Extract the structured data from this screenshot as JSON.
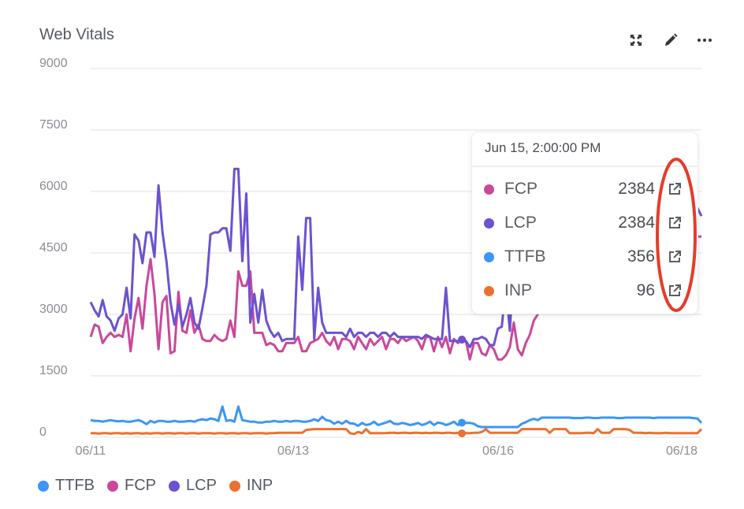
{
  "panel": {
    "title": "Web Vitals"
  },
  "header_icons": [
    "expand-icon",
    "edit-pencil-icon",
    "more-options-icon"
  ],
  "colors": {
    "TTFB": "#3b96f5",
    "FCP": "#c9489b",
    "LCP": "#6c52d0",
    "INP": "#ea7131",
    "annotation": "#e53c2a"
  },
  "legend": [
    {
      "label": "TTFB",
      "color": "#3b96f5"
    },
    {
      "label": "FCP",
      "color": "#c9489b"
    },
    {
      "label": "LCP",
      "color": "#6c52d0"
    },
    {
      "label": "INP",
      "color": "#ea7131"
    }
  ],
  "tooltip": {
    "title": "Jun 15, 2:00:00 PM",
    "rows": [
      {
        "label": "FCP",
        "value": "2384",
        "color": "#c9489b",
        "icon": "external-link-icon"
      },
      {
        "label": "LCP",
        "value": "2384",
        "color": "#6c52d0",
        "icon": "external-link-icon"
      },
      {
        "label": "TTFB",
        "value": "356",
        "color": "#3b96f5",
        "icon": "external-link-icon"
      },
      {
        "label": "INP",
        "value": "96",
        "color": "#ea7131",
        "icon": "external-link-icon"
      }
    ]
  },
  "chart_data": {
    "type": "line",
    "title": "Web Vitals",
    "ylim": [
      0,
      9000
    ],
    "y_ticks": [
      "0",
      "1500",
      "3000",
      "4500",
      "6000",
      "7500",
      "9000"
    ],
    "x_ticks": [
      "06/11",
      "06/13",
      "06/16",
      "06/18"
    ],
    "grid": true,
    "legend_position": "bottom-left",
    "series": [
      {
        "name": "FCP",
        "color": "#c9489b",
        "values": [
          2450,
          2750,
          2700,
          2300,
          2450,
          2550,
          2450,
          2500,
          2450,
          3000,
          2100,
          2900,
          3400,
          2650,
          3700,
          4350,
          3500,
          2150,
          3300,
          3450,
          2050,
          2100,
          3550,
          2600,
          2550,
          3100,
          2550,
          2750,
          2400,
          2350,
          2350,
          2500,
          2400,
          2350,
          2400,
          2850,
          2450,
          4050,
          3700,
          3700,
          4050,
          2550,
          2550,
          2550,
          2250,
          2300,
          2250,
          2100,
          2100,
          2300,
          2300,
          2300,
          2450,
          2100,
          2100,
          2300,
          2350,
          2400,
          2550,
          2350,
          2250,
          2450,
          2150,
          2400,
          2400,
          2350,
          2150,
          2450,
          2300,
          2150,
          2400,
          2250,
          2350,
          2450,
          2150,
          2400,
          2400,
          2300,
          2450,
          2350,
          2400,
          2450,
          2350,
          2150,
          2450,
          2450,
          2100,
          2450,
          2200,
          2450,
          2050,
          2400,
          2300,
          2384,
          2350,
          1900,
          2300,
          2300,
          2050,
          2000,
          2250,
          2150,
          1900,
          1900,
          2000,
          2200,
          2800,
          2150,
          2000,
          2300,
          2500,
          2850,
          3000,
          3100,
          3200,
          3300,
          3200,
          3100,
          3200,
          3300,
          3400,
          3300,
          3200,
          3100,
          3200,
          3300,
          3400,
          3500,
          3600,
          3700,
          3600,
          3500,
          3400,
          3300,
          3200,
          3100,
          3200,
          3300,
          3400,
          3500,
          3600,
          3700,
          3800,
          3900,
          4000,
          4200,
          4400,
          4600,
          4800,
          5000,
          5200,
          5000,
          4900,
          4900
        ]
      },
      {
        "name": "LCP",
        "color": "#6c52d0",
        "values": [
          3300,
          3100,
          2950,
          3350,
          2950,
          2850,
          2600,
          2900,
          3000,
          3650,
          2900,
          4950,
          4800,
          4250,
          5000,
          5000,
          4400,
          6150,
          5000,
          4300,
          3300,
          2750,
          3250,
          2700,
          3000,
          3400,
          2800,
          2650,
          3150,
          3700,
          4950,
          5000,
          5000,
          5100,
          5100,
          4550,
          6550,
          6550,
          4300,
          5950,
          2800,
          3500,
          2800,
          3600,
          2850,
          2600,
          2450,
          2550,
          2350,
          2400,
          2400,
          2400,
          4900,
          3600,
          5350,
          5350,
          2400,
          3650,
          2800,
          2550,
          2550,
          2550,
          2550,
          2550,
          2450,
          2650,
          2450,
          2550,
          2550,
          2450,
          2550,
          2550,
          2450,
          2550,
          2550,
          2450,
          2550,
          2450,
          2450,
          2450,
          2450,
          2450,
          2450,
          2400,
          2500,
          2450,
          2400,
          2400,
          2400,
          3650,
          2350,
          2350,
          2350,
          2384,
          2350,
          2200,
          2400,
          2400,
          2450,
          2400,
          2250,
          2250,
          2650,
          2700,
          3700,
          2600,
          4200,
          3900,
          3500,
          3300,
          3200,
          3100,
          3200,
          3300,
          3400,
          3500,
          3600,
          3500,
          3400,
          3300,
          3200,
          3300,
          3400,
          3500,
          3600,
          3700,
          3800,
          3900,
          4000,
          4100,
          4000,
          3900,
          3800,
          3700,
          3600,
          3500,
          3400,
          3300,
          3200,
          3100,
          3200,
          3300,
          3400,
          3500,
          3600,
          3700,
          3800,
          3900,
          4200,
          4600,
          5000,
          5400,
          5600,
          5400
        ]
      },
      {
        "name": "TTFB",
        "color": "#3b96f5",
        "values": [
          420,
          400,
          400,
          380,
          400,
          420,
          400,
          390,
          400,
          380,
          380,
          400,
          420,
          380,
          320,
          400,
          360,
          400,
          400,
          380,
          380,
          400,
          380,
          380,
          390,
          400,
          380,
          420,
          440,
          420,
          460,
          440,
          400,
          750,
          400,
          420,
          380,
          750,
          420,
          400,
          380,
          380,
          360,
          360,
          380,
          380,
          400,
          380,
          380,
          400,
          380,
          400,
          400,
          380,
          380,
          400,
          440,
          400,
          500,
          420,
          400,
          330,
          380,
          330,
          400,
          340,
          330,
          280,
          350,
          300,
          320,
          380,
          300,
          330,
          360,
          400,
          330,
          320,
          350,
          330,
          300,
          320,
          350,
          300,
          330,
          380,
          300,
          360,
          340,
          300,
          330,
          380,
          300,
          356,
          350,
          350,
          330,
          270,
          250,
          250,
          250,
          250,
          250,
          250,
          250,
          250,
          250,
          250,
          330,
          370,
          420,
          450,
          420,
          480,
          480,
          480,
          480,
          480,
          480,
          480,
          480,
          470,
          470,
          470,
          480,
          480,
          470,
          470,
          480,
          480,
          480,
          480,
          470,
          470,
          480,
          480,
          480,
          480,
          480,
          480,
          480,
          470,
          480,
          480,
          480,
          480,
          480,
          480,
          480,
          480,
          480,
          470,
          460,
          350
        ]
      },
      {
        "name": "INP",
        "color": "#ea7131",
        "values": [
          100,
          100,
          90,
          100,
          100,
          90,
          100,
          100,
          90,
          100,
          90,
          100,
          100,
          90,
          100,
          90,
          100,
          100,
          90,
          100,
          100,
          90,
          100,
          100,
          90,
          100,
          100,
          90,
          100,
          100,
          100,
          90,
          100,
          100,
          90,
          100,
          100,
          90,
          100,
          100,
          90,
          100,
          100,
          100,
          90,
          100,
          100,
          110,
          110,
          110,
          110,
          110,
          110,
          110,
          180,
          190,
          200,
          200,
          200,
          200,
          200,
          200,
          200,
          200,
          200,
          100,
          80,
          130,
          100,
          200,
          100,
          100,
          100,
          100,
          100,
          110,
          110,
          100,
          110,
          110,
          100,
          110,
          110,
          100,
          110,
          100,
          110,
          110,
          100,
          110,
          110,
          100,
          110,
          96,
          100,
          100,
          110,
          110,
          130,
          200,
          110,
          110,
          110,
          110,
          110,
          110,
          110,
          110,
          200,
          200,
          200,
          200,
          200,
          200,
          200,
          110,
          200,
          200,
          200,
          200,
          100,
          100,
          100,
          100,
          110,
          110,
          100,
          200,
          110,
          110,
          110,
          200,
          200,
          200,
          200,
          180,
          110,
          110,
          110,
          100,
          110,
          100,
          100,
          100,
          110,
          100,
          100,
          100,
          100,
          100,
          100,
          100,
          100,
          200
        ]
      }
    ],
    "highlight": {
      "label": "Jun 15, 2:00:00 PM",
      "FCP": 2384,
      "LCP": 2384,
      "TTFB": 356,
      "INP": 96
    }
  }
}
